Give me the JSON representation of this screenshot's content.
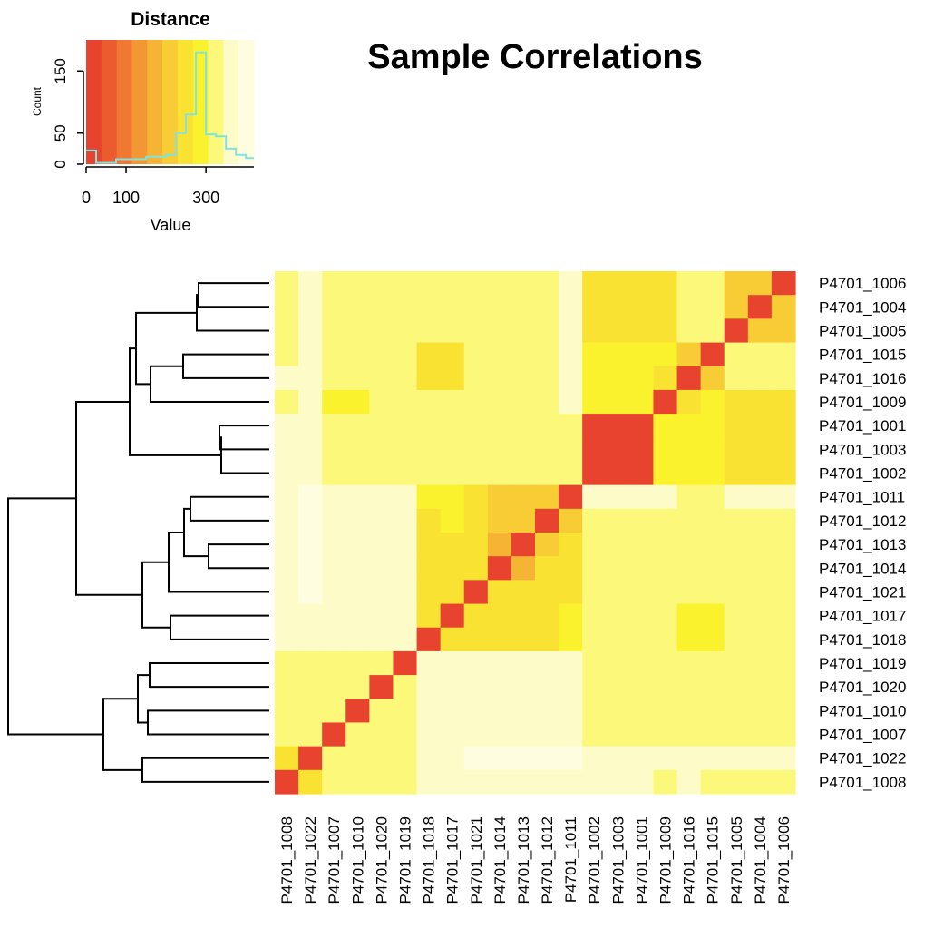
{
  "chart_data": [
    {
      "type": "heatmap",
      "title": "Sample Correlations",
      "row_labels": [
        "P4701_1006",
        "P4701_1004",
        "P4701_1005",
        "P4701_1015",
        "P4701_1016",
        "P4701_1009",
        "P4701_1001",
        "P4701_1003",
        "P4701_1002",
        "P4701_1011",
        "P4701_1012",
        "P4701_1013",
        "P4701_1014",
        "P4701_1021",
        "P4701_1017",
        "P4701_1018",
        "P4701_1019",
        "P4701_1020",
        "P4701_1010",
        "P4701_1007",
        "P4701_1022",
        "P4701_1008"
      ],
      "col_labels": [
        "P4701_1008",
        "P4701_1022",
        "P4701_1007",
        "P4701_1010",
        "P4701_1020",
        "P4701_1019",
        "P4701_1018",
        "P4701_1017",
        "P4701_1021",
        "P4701_1014",
        "P4701_1013",
        "P4701_1012",
        "P4701_1011",
        "P4701_1002",
        "P4701_1003",
        "P4701_1001",
        "P4701_1009",
        "P4701_1016",
        "P4701_1015",
        "P4701_1005",
        "P4701_1004",
        "P4701_1006"
      ],
      "value_unit": "distance (estimated from color key)",
      "values": [
        [
          340,
          380,
          310,
          340,
          340,
          340,
          340,
          340,
          340,
          340,
          340,
          340,
          350,
          260,
          260,
          260,
          260,
          310,
          310,
          200,
          200,
          0
        ],
        [
          340,
          380,
          310,
          340,
          340,
          340,
          340,
          340,
          340,
          340,
          340,
          340,
          350,
          260,
          260,
          260,
          260,
          310,
          310,
          200,
          0,
          200
        ],
        [
          340,
          380,
          310,
          340,
          340,
          340,
          340,
          340,
          340,
          340,
          340,
          340,
          350,
          260,
          260,
          260,
          260,
          310,
          310,
          0,
          200,
          200
        ],
        [
          330,
          350,
          310,
          330,
          310,
          310,
          260,
          260,
          330,
          310,
          310,
          330,
          350,
          300,
          300,
          300,
          300,
          210,
          0,
          310,
          310,
          310
        ],
        [
          350,
          350,
          330,
          330,
          330,
          330,
          260,
          260,
          330,
          330,
          330,
          330,
          350,
          300,
          300,
          300,
          260,
          0,
          210,
          310,
          310,
          310
        ],
        [
          320,
          350,
          300,
          300,
          330,
          330,
          330,
          330,
          330,
          330,
          330,
          330,
          350,
          300,
          300,
          300,
          0,
          260,
          300,
          260,
          260,
          260
        ],
        [
          350,
          380,
          310,
          330,
          330,
          330,
          330,
          330,
          330,
          330,
          330,
          330,
          330,
          30,
          20,
          0,
          300,
          300,
          300,
          260,
          260,
          260
        ],
        [
          350,
          350,
          310,
          330,
          330,
          330,
          330,
          330,
          330,
          330,
          330,
          330,
          330,
          20,
          0,
          20,
          300,
          300,
          300,
          260,
          260,
          260
        ],
        [
          350,
          380,
          310,
          330,
          330,
          330,
          330,
          330,
          330,
          330,
          330,
          330,
          330,
          0,
          20,
          30,
          300,
          300,
          300,
          260,
          260,
          260
        ],
        [
          380,
          400,
          350,
          350,
          350,
          350,
          290,
          290,
          230,
          200,
          200,
          200,
          0,
          350,
          350,
          350,
          350,
          330,
          330,
          350,
          350,
          350
        ],
        [
          380,
          400,
          350,
          350,
          350,
          350,
          260,
          290,
          230,
          200,
          200,
          0,
          200,
          330,
          330,
          330,
          330,
          330,
          330,
          330,
          330,
          330
        ],
        [
          380,
          400,
          350,
          350,
          350,
          350,
          260,
          260,
          230,
          160,
          0,
          200,
          230,
          330,
          330,
          330,
          330,
          310,
          310,
          330,
          330,
          330
        ],
        [
          380,
          400,
          350,
          350,
          350,
          350,
          260,
          260,
          230,
          0,
          160,
          230,
          230,
          330,
          330,
          330,
          330,
          310,
          310,
          330,
          330,
          330
        ],
        [
          350,
          400,
          350,
          350,
          350,
          350,
          260,
          260,
          0,
          230,
          230,
          230,
          230,
          330,
          330,
          330,
          330,
          330,
          330,
          330,
          330,
          330
        ],
        [
          350,
          380,
          350,
          350,
          350,
          350,
          230,
          0,
          260,
          260,
          260,
          260,
          290,
          330,
          330,
          330,
          330,
          270,
          270,
          330,
          330,
          330
        ],
        [
          350,
          380,
          350,
          350,
          350,
          350,
          0,
          230,
          260,
          260,
          260,
          260,
          290,
          330,
          330,
          330,
          330,
          270,
          270,
          330,
          330,
          330
        ],
        [
          330,
          330,
          330,
          330,
          310,
          0,
          350,
          350,
          350,
          350,
          350,
          350,
          350,
          330,
          330,
          330,
          330,
          330,
          310,
          330,
          330,
          330
        ],
        [
          330,
          330,
          310,
          330,
          0,
          310,
          350,
          350,
          350,
          350,
          350,
          350,
          350,
          330,
          330,
          330,
          330,
          330,
          310,
          330,
          330,
          330
        ],
        [
          310,
          330,
          330,
          0,
          330,
          330,
          350,
          350,
          350,
          350,
          350,
          350,
          350,
          330,
          330,
          330,
          310,
          330,
          330,
          330,
          330,
          330
        ],
        [
          310,
          330,
          0,
          310,
          310,
          330,
          350,
          350,
          350,
          350,
          350,
          350,
          350,
          310,
          310,
          310,
          310,
          330,
          310,
          310,
          310,
          310
        ],
        [
          260,
          0,
          330,
          330,
          330,
          330,
          380,
          380,
          400,
          400,
          400,
          400,
          400,
          380,
          350,
          380,
          350,
          350,
          350,
          380,
          380,
          380
        ],
        [
          0,
          260,
          310,
          310,
          330,
          330,
          350,
          350,
          350,
          380,
          380,
          380,
          380,
          350,
          350,
          350,
          330,
          350,
          330,
          330,
          330,
          330
        ]
      ]
    },
    {
      "type": "histogram",
      "title": "Distance",
      "xlabel": "Value",
      "ylabel": "Count",
      "x_ticks": [
        0,
        100,
        300
      ],
      "y_ticks": [
        0,
        50,
        150
      ],
      "xlim": [
        0,
        420
      ],
      "ylim": [
        0,
        200
      ],
      "bin_edges": [
        0,
        25,
        50,
        75,
        100,
        125,
        150,
        175,
        200,
        225,
        250,
        275,
        300,
        325,
        350,
        375,
        400,
        420
      ],
      "counts": [
        22,
        2,
        2,
        8,
        8,
        8,
        12,
        12,
        15,
        50,
        80,
        180,
        48,
        45,
        25,
        15,
        10
      ],
      "line_color": "#7fe3e0"
    }
  ],
  "colors": {
    "gradient": [
      "#e8432f",
      "#ec5a30",
      "#f07832",
      "#f39734",
      "#f6b435",
      "#f8cc35",
      "#fae232",
      "#fbf22e",
      "#fcf97a",
      "#fdfcc8",
      "#fffde0"
    ]
  }
}
